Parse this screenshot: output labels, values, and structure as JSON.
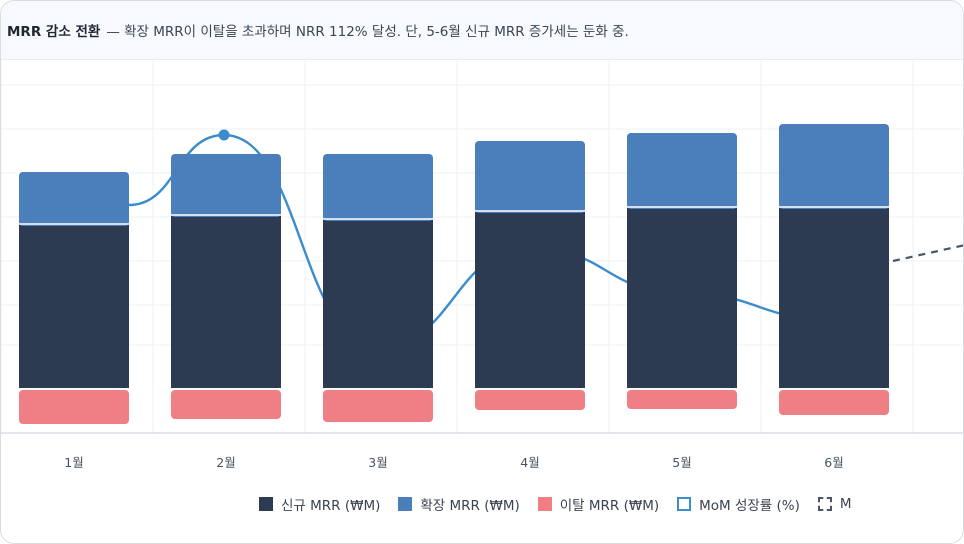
{
  "banner": {
    "title": "MRR 감소 전환",
    "text": "— 확장 MRR이 이탈을 초과하며 NRR 112% 달성. 단, 5-6월 신규 MRR 증가세는 둔화 중."
  },
  "chart_data": {
    "type": "bar",
    "categories": [
      "1월",
      "2월",
      "3월",
      "4월",
      "5월",
      "6월"
    ],
    "series": [
      {
        "name": "신규 MRR (₩M)",
        "type": "bar",
        "color": "#2c3a52",
        "values": [
          164,
          173,
          169,
          177,
          181,
          181
        ]
      },
      {
        "name": "확장 MRR (₩M)",
        "type": "bar",
        "color": "#4b7fbb",
        "values": [
          52,
          61,
          65,
          70,
          74,
          83
        ]
      },
      {
        "name": "이탈 MRR (₩M)",
        "type": "bar",
        "color": "#ef7f85",
        "values": [
          -36,
          -31,
          -34,
          -22,
          -21,
          -27
        ]
      },
      {
        "name": "MoM 성장률 (%)",
        "type": "line",
        "color": "#3a8ccc",
        "values": [
          null,
          30,
          6,
          17,
          12,
          9
        ]
      }
    ],
    "truncated_legend_entry": "M",
    "stacked": true,
    "grid": true
  },
  "colors": {
    "new": "#2c3a52",
    "expansion": "#4b7fbb",
    "churn": "#ef7f85",
    "growth_line": "#3a8ccc",
    "dashed": "#4a5568"
  }
}
